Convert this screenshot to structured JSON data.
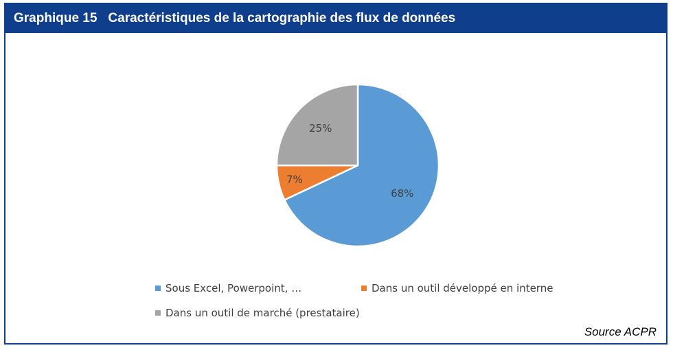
{
  "header": {
    "number": "Graphique 15",
    "title": "Caractéristiques de la cartographie des flux de données"
  },
  "source": "Source ACPR",
  "chart_data": {
    "type": "pie",
    "slices": [
      {
        "name": "Sous Excel, Powerpoint, …",
        "value": 68,
        "label": "68%",
        "color": "#5b9bd5"
      },
      {
        "name": "Dans un outil développé en interne",
        "value": 7,
        "label": "7%",
        "color": "#ed7d31"
      },
      {
        "name": "Dans un outil de marché (prestataire)",
        "value": 25,
        "label": "25%",
        "color": "#a5a5a5"
      }
    ],
    "legend_position": "bottom"
  }
}
